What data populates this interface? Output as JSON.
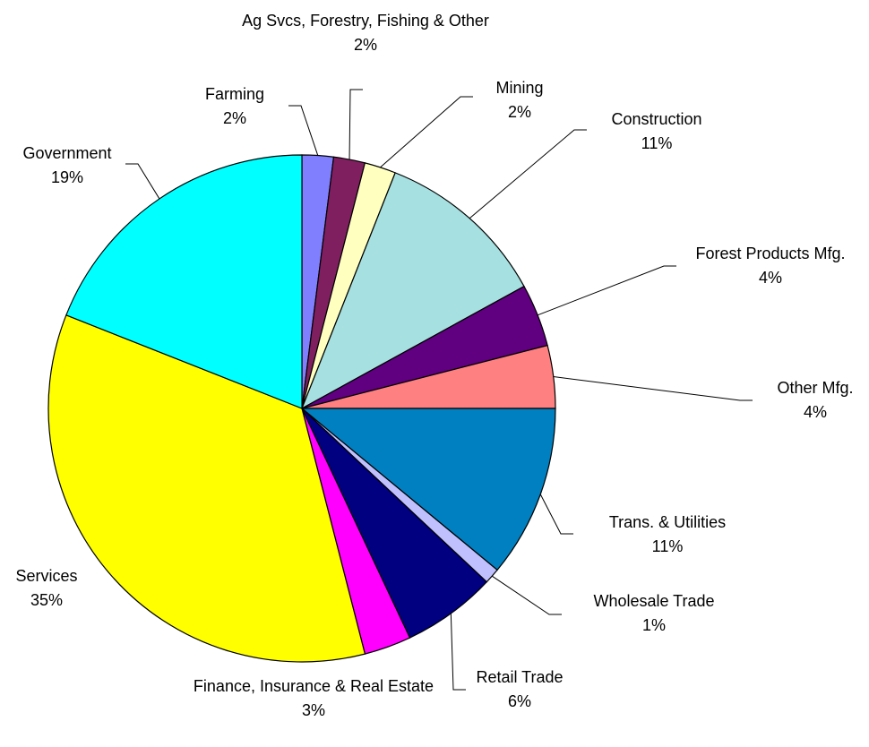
{
  "chart_data": {
    "type": "pie",
    "categories": [
      "Farming",
      "Ag Svcs, Forestry, Fishing & Other",
      "Mining",
      "Construction",
      "Forest Products Mfg.",
      "Other Mfg.",
      "Trans. & Utilities",
      "Wholesale Trade",
      "Retail Trade",
      "Finance, Insurance & Real Estate",
      "Services",
      "Government"
    ],
    "values": [
      2,
      2,
      2,
      11,
      4,
      4,
      11,
      1,
      6,
      3,
      35,
      19
    ],
    "value_labels": [
      "2%",
      "2%",
      "2%",
      "11%",
      "4%",
      "4%",
      "11%",
      "1%",
      "6%",
      "3%",
      "35%",
      "19%"
    ],
    "colors": [
      "#8080ff",
      "#7f1f5f",
      "#ffffc0",
      "#a6e0e0",
      "#600080",
      "#ff8080",
      "#0080c0",
      "#c0c0ff",
      "#000080",
      "#ff00ff",
      "#ffff00",
      "#00ffff"
    ]
  }
}
